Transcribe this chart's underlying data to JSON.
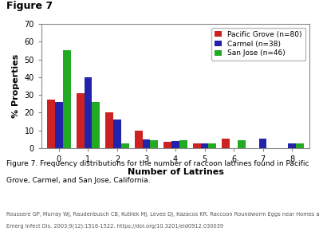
{
  "title": "Figure 7",
  "xlabel": "Number of Latrines",
  "ylabel": "% Properties",
  "ylim": [
    0,
    70
  ],
  "yticks": [
    0,
    10,
    20,
    30,
    40,
    50,
    60,
    70
  ],
  "x_categories": [
    0,
    1,
    2,
    3,
    4,
    5,
    6,
    7,
    8
  ],
  "series": [
    {
      "label": "Pacific Grove (n=80)",
      "color": "#cc2222",
      "values": [
        27.5,
        31,
        20,
        10,
        3.5,
        2.5,
        5.5,
        0,
        0
      ]
    },
    {
      "label": "Carmel (n=38)",
      "color": "#2222aa",
      "values": [
        26,
        40,
        16,
        5,
        4,
        2.5,
        0,
        5.5,
        2.5
      ]
    },
    {
      "label": "San Jose (n=46)",
      "color": "#22aa22",
      "values": [
        55,
        26,
        2.5,
        4.5,
        4.5,
        2.5,
        4.5,
        0,
        2.5
      ]
    }
  ],
  "bar_width": 0.27,
  "title_fontsize": 9,
  "axis_fontsize": 8,
  "tick_fontsize": 7,
  "legend_fontsize": 6.5,
  "legend_loc": "upper right",
  "background_color": "#ffffff",
  "caption_line1": "Figure 7. Frequency distributions for the number of raccoon latrines found in Pacific",
  "caption_line2": "Grove, Carmel, and San Jose, California.",
  "caption_line3": "",
  "ref_line": "Roussere GP, Murray WJ, Raudenbusch CB, Kutilek MJ, Levee DJ, Kazacos KR. Raccoon Roundworm Eggs near Homes and Risk for Larva Migrans Disease, California Communities.",
  "ref_line2": "Emerg Infect Dis. 2003;9(12):1516-1522. https://doi.org/10.3201/eid0912.030039",
  "caption_fontsize": 6.5,
  "ref_fontsize": 4.8
}
